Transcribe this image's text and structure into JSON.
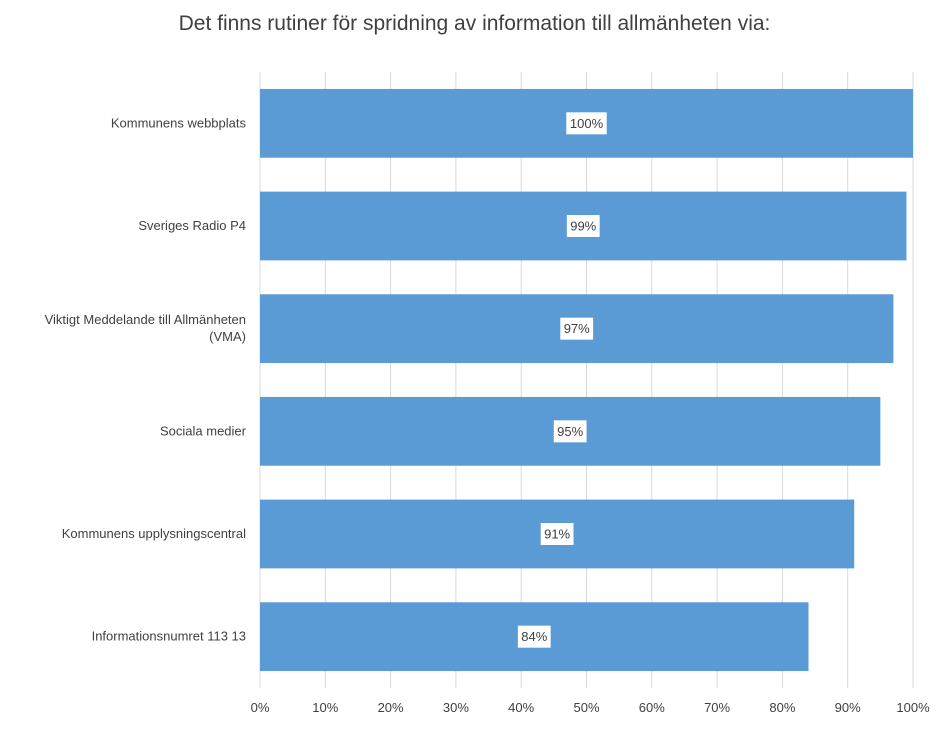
{
  "chart_data": {
    "type": "bar",
    "orientation": "horizontal",
    "title": "Det finns rutiner för spridning av information till allmänheten via:",
    "categories": [
      "Kommunens webbplats",
      "Sveriges Radio P4",
      "Viktigt Meddelande till Allmänheten (VMA)",
      "Sociala medier",
      "Kommunens upplysningscentral",
      "Informationsnumret 113 13"
    ],
    "category_lines": [
      [
        "Kommunens webbplats"
      ],
      [
        "Sveriges Radio P4"
      ],
      [
        "Viktigt Meddelande till Allmänheten",
        "(VMA)"
      ],
      [
        "Sociala medier"
      ],
      [
        "Kommunens upplysningscentral"
      ],
      [
        "Informationsnumret 113 13"
      ]
    ],
    "values": [
      100,
      99,
      97,
      95,
      91,
      84
    ],
    "data_labels": [
      "100%",
      "99%",
      "97%",
      "95%",
      "91%",
      "84%"
    ],
    "xlim": [
      0,
      100
    ],
    "xticks": [
      0,
      10,
      20,
      30,
      40,
      50,
      60,
      70,
      80,
      90,
      100
    ],
    "xtick_labels": [
      "0%",
      "10%",
      "20%",
      "30%",
      "40%",
      "50%",
      "60%",
      "70%",
      "80%",
      "90%",
      "100%"
    ],
    "xlabel": "",
    "ylabel": "",
    "grid": "vertical",
    "legend": "none",
    "colors": {
      "bar": "#5b9bd5",
      "grid": "#d9d9d9",
      "text": "#404040",
      "label_box": "#ffffff"
    }
  }
}
